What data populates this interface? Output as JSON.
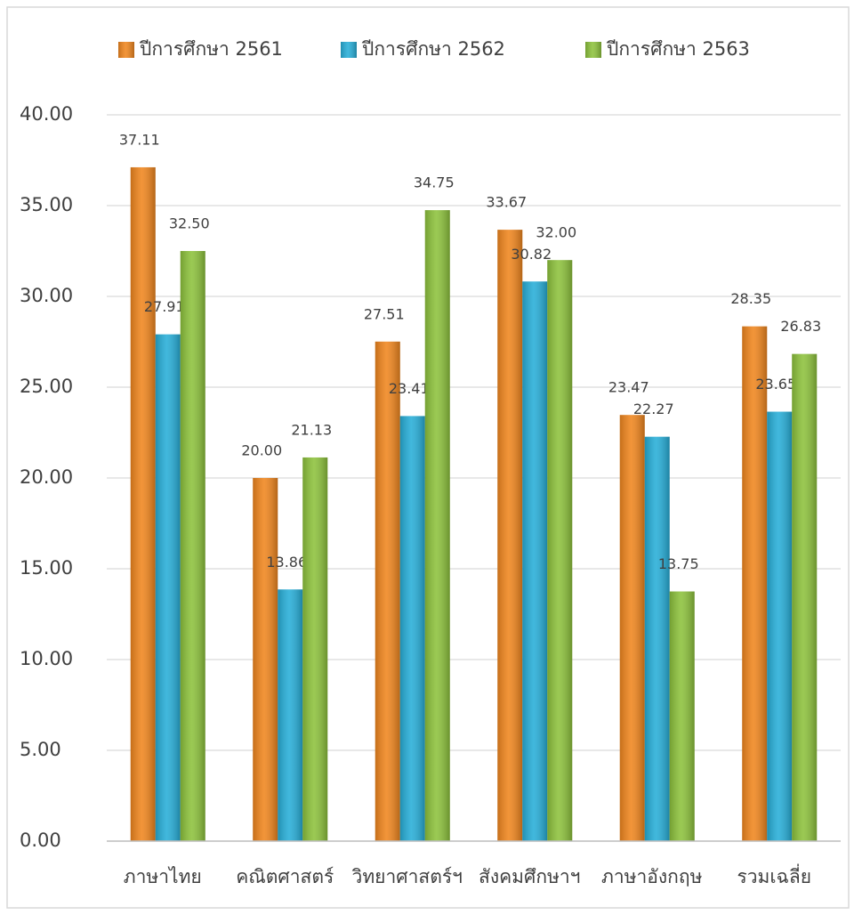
{
  "chart_data": {
    "type": "bar",
    "categories": [
      "ภาษาไทย",
      "คณิตศาสตร์",
      "วิทยาศาสตร์ฯ",
      "สังคมศึกษาฯ",
      "ภาษาอังกฤษ",
      "รวมเฉลี่ย"
    ],
    "series": [
      {
        "name": "ปีการศึกษา  2561",
        "color": "#f0861e",
        "values": [
          37.11,
          20.0,
          27.51,
          33.67,
          23.47,
          28.35
        ],
        "value_labels": [
          "37.11",
          "20.00",
          "27.51",
          "33.67",
          "23.47",
          "28.35"
        ]
      },
      {
        "name": "ปีการศึกษา  2562",
        "color": "#27aed8",
        "values": [
          27.91,
          13.86,
          23.41,
          30.82,
          22.27,
          23.65
        ],
        "value_labels": [
          "27.91",
          "13.86",
          "23.41",
          "30.82",
          "22.27",
          "23.65"
        ]
      },
      {
        "name": "ปีการศึกษา  2563",
        "color": "#8dc23c",
        "values": [
          32.5,
          21.13,
          34.75,
          32.0,
          13.75,
          26.83
        ],
        "value_labels": [
          "32.50",
          "21.13",
          "34.75",
          "32.00",
          "13.75",
          "26.83"
        ]
      }
    ],
    "ylim": [
      0,
      40
    ],
    "yticks": [
      {
        "value": 0,
        "label": "0.00"
      },
      {
        "value": 5,
        "label": "5.00"
      },
      {
        "value": 10,
        "label": "10.00"
      },
      {
        "value": 15,
        "label": "15.00"
      },
      {
        "value": 20,
        "label": "20.00"
      },
      {
        "value": 25,
        "label": "25.00"
      },
      {
        "value": 30,
        "label": "30.00"
      },
      {
        "value": 35,
        "label": "35.00"
      },
      {
        "value": 40,
        "label": "40.00"
      }
    ],
    "grid": true,
    "legend": "top"
  }
}
